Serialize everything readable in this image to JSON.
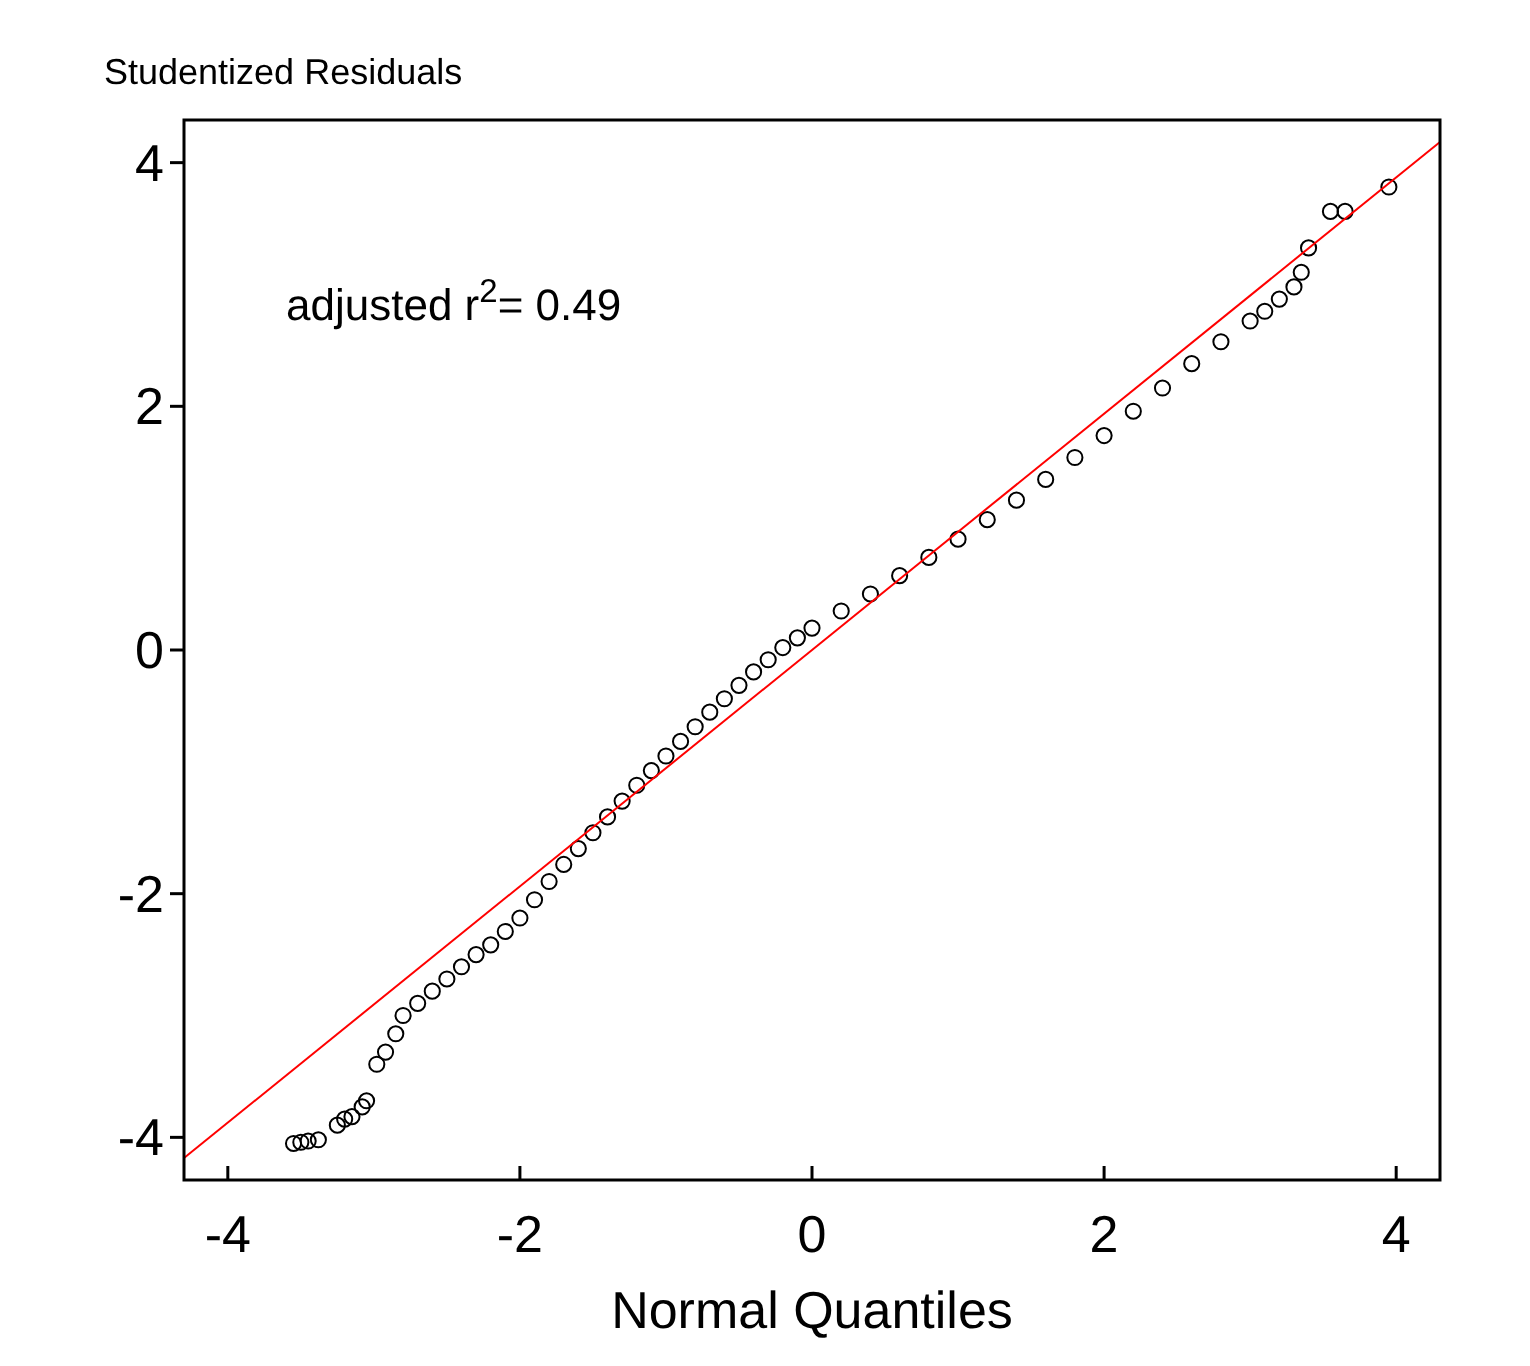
{
  "chart_data": {
    "type": "scatter",
    "xlabel": "Normal Quantiles",
    "ylabel": "Studentized Residuals",
    "annotations": [
      "adjusted r$^{2}$= 0.49"
    ],
    "xlim": [
      -4.3,
      4.3
    ],
    "ylim": [
      -4.35,
      4.35
    ],
    "xticks": [
      -4,
      -2,
      0,
      2,
      4
    ],
    "yticks": [
      -4,
      -2,
      0,
      2,
      4
    ],
    "series": [
      {
        "color": "#000000",
        "marker": "circle",
        "x": [
          -3.55,
          -3.5,
          -3.45,
          -3.38,
          -3.25,
          -3.2,
          -3.15,
          -3.08,
          -3.05,
          -2.98,
          -2.92,
          -2.85,
          -2.8,
          -2.7,
          -2.6,
          -2.5,
          -2.4,
          -2.3,
          -2.2,
          -2.1,
          -2.0,
          -1.9,
          -1.8,
          -1.7,
          -1.6,
          -1.5,
          -1.4,
          -1.3,
          -1.2,
          -1.1,
          -1.0,
          -0.9,
          -0.8,
          -0.7,
          -0.6,
          -0.5,
          -0.4,
          -0.3,
          -0.2,
          -0.1,
          0,
          0.2,
          0.4,
          0.6,
          0.8,
          1.0,
          1.2,
          1.4,
          1.6,
          1.8,
          2.0,
          2.2,
          2.4,
          2.6,
          2.8,
          3.0,
          3.1,
          3.2,
          3.3,
          3.35,
          3.4,
          3.55,
          3.65,
          3.95
        ],
        "values": [
          -4.05,
          -4.04,
          -4.03,
          -4.02,
          -3.9,
          -3.85,
          -3.83,
          -3.75,
          -3.7,
          -3.4,
          -3.3,
          -3.15,
          -3.0,
          -2.9,
          -2.8,
          -2.7,
          -2.6,
          -2.5,
          -2.42,
          -2.31,
          -2.2,
          -2.05,
          -1.9,
          -1.76,
          -1.63,
          -1.5,
          -1.37,
          -1.24,
          -1.11,
          -0.99,
          -0.87,
          -0.75,
          -0.63,
          -0.51,
          -0.4,
          -0.29,
          -0.18,
          -0.08,
          0.02,
          0.1,
          0.18,
          0.32,
          0.46,
          0.61,
          0.76,
          0.91,
          1.07,
          1.23,
          1.4,
          1.58,
          1.76,
          1.96,
          2.15,
          2.35,
          2.53,
          2.7,
          2.78,
          2.88,
          2.98,
          3.1,
          3.3,
          3.6,
          3.6,
          3.8
        ]
      },
      {
        "type": "line",
        "color": "#ff0000",
        "x": [
          -4.3,
          4.3
        ],
        "values": [
          -4.17,
          4.17
        ]
      }
    ]
  }
}
